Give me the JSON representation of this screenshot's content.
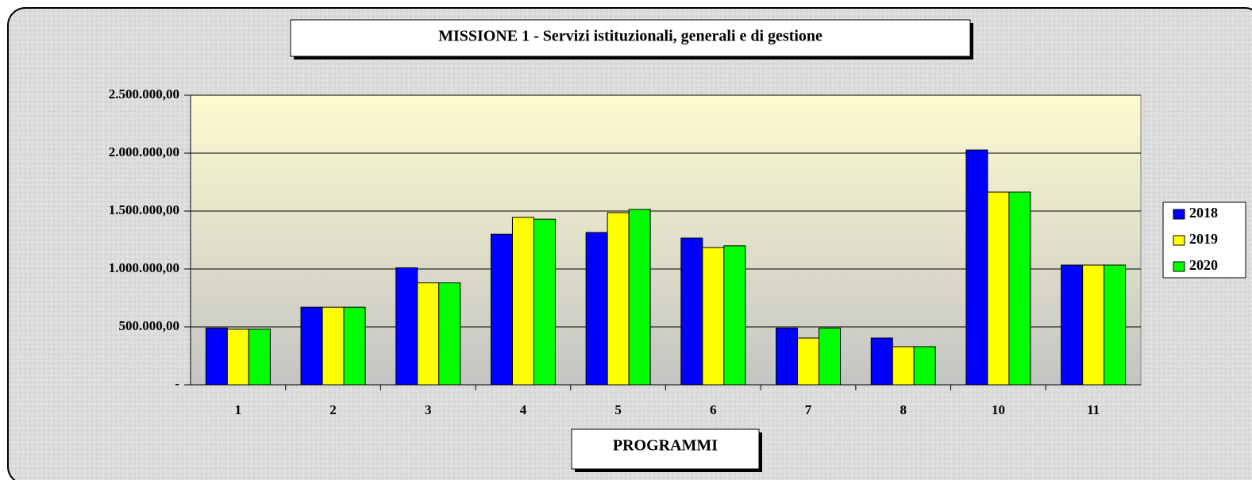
{
  "chart_data": {
    "type": "bar",
    "title": "MISSIONE 1 - Servizi istituzionali, generali e di gestione",
    "x_label": "PROGRAMMI",
    "categories": [
      "1",
      "2",
      "3",
      "4",
      "5",
      "6",
      "7",
      "8",
      "10",
      "11"
    ],
    "series": [
      {
        "name": "2018",
        "color": "#0000ff",
        "values": [
          490000,
          670000,
          1010000,
          1300000,
          1315000,
          1267000,
          490000,
          404000,
          2027000,
          1034000
        ]
      },
      {
        "name": "2019",
        "color": "#ffff00",
        "values": [
          480000,
          670000,
          880000,
          1445000,
          1486000,
          1185000,
          404000,
          329000,
          1664000,
          1034000
        ]
      },
      {
        "name": "2020",
        "color": "#00ff00",
        "values": [
          480000,
          670000,
          880000,
          1430000,
          1514000,
          1200000,
          490000,
          329000,
          1664000,
          1034000
        ]
      }
    ],
    "ylim": [
      0,
      2500000
    ],
    "yticks": [
      {
        "value": 0,
        "label": "-"
      },
      {
        "value": 500000,
        "label": "500.000,00"
      },
      {
        "value": 1000000,
        "label": "1.000.000,00"
      },
      {
        "value": 1500000,
        "label": "1.500.000,00"
      },
      {
        "value": 2000000,
        "label": "2.000.000,00"
      },
      {
        "value": 2500000,
        "label": "2.500.000,00"
      }
    ],
    "grid": true,
    "legend": "right"
  }
}
